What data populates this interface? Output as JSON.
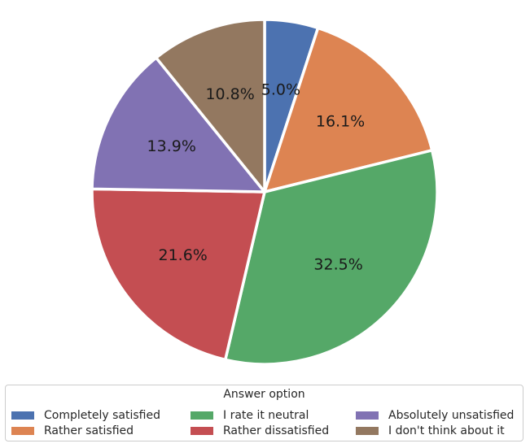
{
  "chart_data": {
    "type": "pie",
    "title": "",
    "start_angle_deg": 90,
    "direction": "clockwise",
    "slices": [
      {
        "name": "Completely satisfied",
        "value": 5.0,
        "label": "5.0%",
        "color": "#4c72b0"
      },
      {
        "name": "Rather satisfied",
        "value": 16.1,
        "label": "16.1%",
        "color": "#dd8452"
      },
      {
        "name": "I rate it neutral",
        "value": 32.5,
        "label": "32.5%",
        "color": "#55a868"
      },
      {
        "name": "Rather dissatisfied",
        "value": 21.6,
        "label": "21.6%",
        "color": "#c44e52"
      },
      {
        "name": "Absolutely unsatisfied",
        "value": 13.9,
        "label": "13.9%",
        "color": "#8172b3"
      },
      {
        "name": "I don't think about it",
        "value": 10.8,
        "label": "10.8%",
        "color": "#937860"
      }
    ],
    "legend": {
      "title": "Answer option",
      "placement": "bottom",
      "columns": 3
    }
  }
}
